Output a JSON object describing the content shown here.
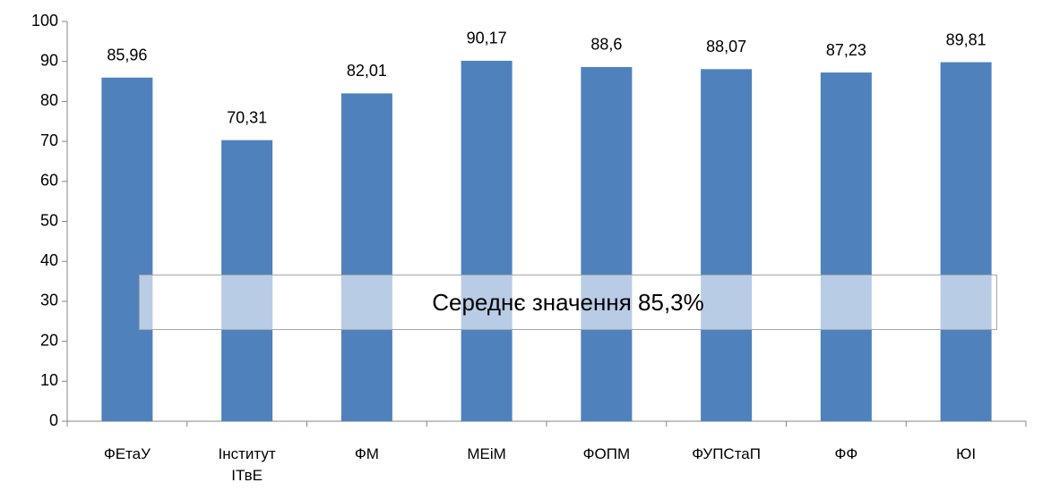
{
  "chart_data": {
    "type": "bar",
    "categories": [
      "ФЕтаУ",
      "Інститут ІТвЕ",
      "ФМ",
      "МЕіМ",
      "ФОПМ",
      "ФУПСтаП",
      "ФФ",
      "ЮІ"
    ],
    "values": [
      85.96,
      70.31,
      82.01,
      90.17,
      88.6,
      88.07,
      87.23,
      89.81
    ],
    "value_labels": [
      "85,96",
      "70,31",
      "82,01",
      "90,17",
      "88,6",
      "88,07",
      "87,23",
      "89,81"
    ],
    "color": "#4f81bd",
    "ylim": [
      0,
      100
    ],
    "yticks": [
      0,
      10,
      20,
      30,
      40,
      50,
      60,
      70,
      80,
      90,
      100
    ],
    "grid": false,
    "annotation": "Середнє значення 85,3%"
  }
}
